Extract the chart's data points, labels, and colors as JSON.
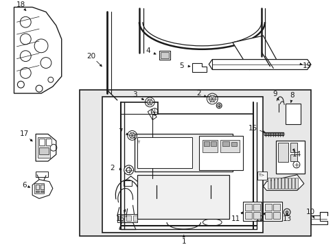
{
  "bg_color": "#ffffff",
  "box_bg": "#e0e0e0",
  "line_color": "#1a1a1a",
  "fig_width": 4.89,
  "fig_height": 3.6,
  "dpi": 100,
  "font_size": 7.5
}
